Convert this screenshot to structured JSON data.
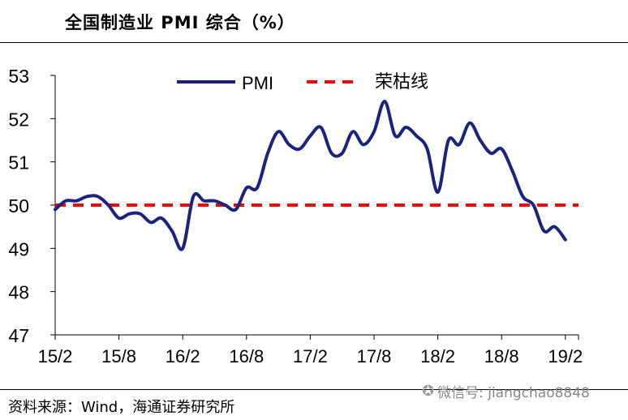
{
  "title": "全国制造业 PMI 综合（%）",
  "source": "资料来源：Wind，海通证券研究所",
  "watermark": "微信号: jiangchao8848",
  "colors": {
    "pmi": "#1a237e",
    "threshold": "#ff0000",
    "axis": "#000000"
  },
  "chart_data": {
    "type": "line",
    "title": "全国制造业 PMI 综合（%）",
    "xlabel": "",
    "ylabel": "",
    "ylim": [
      47,
      53
    ],
    "yticks": [
      47,
      48,
      49,
      50,
      51,
      52,
      53
    ],
    "x_tick_labels": [
      "15/2",
      "15/8",
      "16/2",
      "16/8",
      "17/2",
      "17/8",
      "18/2",
      "18/8",
      "19/2"
    ],
    "x": [
      "15/2",
      "15/3",
      "15/4",
      "15/5",
      "15/6",
      "15/7",
      "15/8",
      "15/9",
      "15/10",
      "15/11",
      "15/12",
      "16/1",
      "16/2",
      "16/3",
      "16/4",
      "16/5",
      "16/6",
      "16/7",
      "16/8",
      "16/9",
      "16/10",
      "16/11",
      "16/12",
      "17/1",
      "17/2",
      "17/3",
      "17/4",
      "17/5",
      "17/6",
      "17/7",
      "17/8",
      "17/9",
      "17/10",
      "17/11",
      "17/12",
      "18/1",
      "18/2",
      "18/3",
      "18/4",
      "18/5",
      "18/6",
      "18/7",
      "18/8",
      "18/9",
      "18/10",
      "18/11",
      "18/12",
      "19/1",
      "19/2"
    ],
    "grid": false,
    "legend_position": "top",
    "series": [
      {
        "name": "PMI",
        "values": [
          49.9,
          50.1,
          50.1,
          50.2,
          50.2,
          50.0,
          49.7,
          49.8,
          49.8,
          49.6,
          49.7,
          49.4,
          49.0,
          50.2,
          50.1,
          50.1,
          50.0,
          49.9,
          50.4,
          50.4,
          51.2,
          51.7,
          51.4,
          51.3,
          51.6,
          51.8,
          51.2,
          51.2,
          51.7,
          51.4,
          51.7,
          52.4,
          51.6,
          51.8,
          51.6,
          51.3,
          50.3,
          51.5,
          51.4,
          51.9,
          51.5,
          51.2,
          51.3,
          50.8,
          50.2,
          50.0,
          49.4,
          49.5,
          49.2
        ]
      },
      {
        "name": "荣枯线",
        "values": [
          50,
          50,
          50,
          50,
          50,
          50,
          50,
          50,
          50,
          50,
          50,
          50,
          50,
          50,
          50,
          50,
          50,
          50,
          50,
          50,
          50,
          50,
          50,
          50,
          50,
          50,
          50,
          50,
          50,
          50,
          50,
          50,
          50,
          50,
          50,
          50,
          50,
          50,
          50,
          50,
          50,
          50,
          50,
          50,
          50,
          50,
          50,
          50,
          50
        ]
      }
    ]
  }
}
